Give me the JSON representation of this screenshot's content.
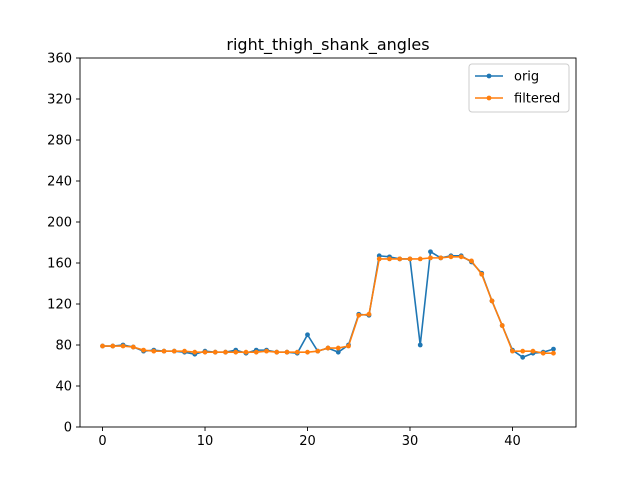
{
  "chart_data": {
    "type": "line",
    "title": "right_thigh_shank_angles",
    "xlabel": "",
    "ylabel": "",
    "xlim": [
      -2.2,
      46.2
    ],
    "ylim": [
      0,
      360
    ],
    "xticks": [
      0,
      10,
      20,
      30,
      40
    ],
    "yticks": [
      0,
      40,
      80,
      120,
      160,
      200,
      240,
      280,
      320,
      360
    ],
    "grid": false,
    "legend_position": "top-right",
    "x": [
      0,
      1,
      2,
      3,
      4,
      5,
      6,
      7,
      8,
      9,
      10,
      11,
      12,
      13,
      14,
      15,
      16,
      17,
      18,
      19,
      20,
      21,
      22,
      23,
      24,
      25,
      26,
      27,
      28,
      29,
      30,
      31,
      32,
      33,
      34,
      35,
      36,
      37,
      38,
      39,
      40,
      41,
      42,
      43,
      44
    ],
    "series": [
      {
        "name": "orig",
        "color": "#1f77b4",
        "values": [
          79,
          79,
          80,
          78,
          74,
          75,
          74,
          74,
          73,
          71,
          74,
          73,
          73,
          75,
          72,
          75,
          75,
          73,
          73,
          72,
          90,
          74,
          77,
          73,
          80,
          110,
          109,
          167,
          166,
          164,
          164,
          80,
          171,
          165,
          167,
          167,
          161,
          150,
          123,
          99,
          75,
          68,
          72,
          73,
          76
        ]
      },
      {
        "name": "filtered",
        "color": "#ff7f0e",
        "values": [
          79,
          79,
          79,
          78,
          75,
          74,
          74,
          74,
          74,
          73,
          73,
          73,
          73,
          73,
          73,
          73,
          74,
          73,
          73,
          73,
          73,
          74,
          77,
          77,
          79,
          109,
          110,
          164,
          164,
          164,
          164,
          164,
          165,
          165,
          166,
          166,
          162,
          149,
          123,
          99,
          74,
          74,
          74,
          72,
          72
        ]
      }
    ]
  }
}
